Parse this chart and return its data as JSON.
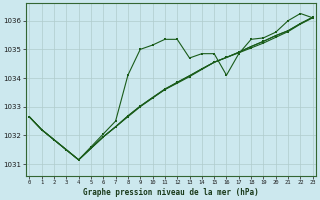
{
  "title": "Graphe pression niveau de la mer (hPa)",
  "background_color": "#cce8ee",
  "grid_color": "#b0cccc",
  "line_color": "#1a5c1a",
  "series1": [
    1032.65,
    1032.2,
    1031.85,
    1031.5,
    1031.15,
    1031.6,
    1032.05,
    1032.5,
    1034.1,
    1035.0,
    1035.15,
    1035.35,
    1035.35,
    1034.7,
    1034.85,
    1034.85,
    1034.1,
    1034.85,
    1035.35,
    1035.4,
    1035.6,
    1036.0,
    1036.25,
    1036.1
  ],
  "series2": [
    1032.65,
    1032.2,
    1031.85,
    1031.5,
    1031.15,
    1031.55,
    1031.95,
    1032.3,
    1032.65,
    1033.0,
    1033.3,
    1033.6,
    1033.82,
    1034.05,
    1034.3,
    1034.55,
    1034.72,
    1034.88,
    1035.05,
    1035.22,
    1035.42,
    1035.62,
    1035.88,
    1036.1
  ],
  "series3": [
    1032.65,
    1032.2,
    1031.85,
    1031.5,
    1031.15,
    1031.55,
    1031.95,
    1032.3,
    1032.68,
    1033.02,
    1033.32,
    1033.6,
    1033.85,
    1034.08,
    1034.32,
    1034.55,
    1034.72,
    1034.9,
    1035.1,
    1035.28,
    1035.48,
    1035.65,
    1035.9,
    1036.12
  ],
  "series4": [
    1032.65,
    1032.2,
    1031.85,
    1031.5,
    1031.15,
    1031.55,
    1031.95,
    1032.3,
    1032.68,
    1033.02,
    1033.32,
    1033.62,
    1033.85,
    1034.08,
    1034.32,
    1034.55,
    1034.72,
    1034.9,
    1035.1,
    1035.28,
    1035.48,
    1035.65,
    1035.9,
    1036.12
  ],
  "xlim": [
    -0.3,
    23.3
  ],
  "ylim": [
    1030.6,
    1036.6
  ],
  "yticks": [
    1031,
    1032,
    1033,
    1034,
    1035,
    1036
  ],
  "xticks": [
    0,
    1,
    2,
    3,
    4,
    5,
    6,
    7,
    8,
    9,
    10,
    11,
    12,
    13,
    14,
    15,
    16,
    17,
    18,
    19,
    20,
    21,
    22,
    23
  ],
  "figsize": [
    3.2,
    2.0
  ],
  "dpi": 100
}
